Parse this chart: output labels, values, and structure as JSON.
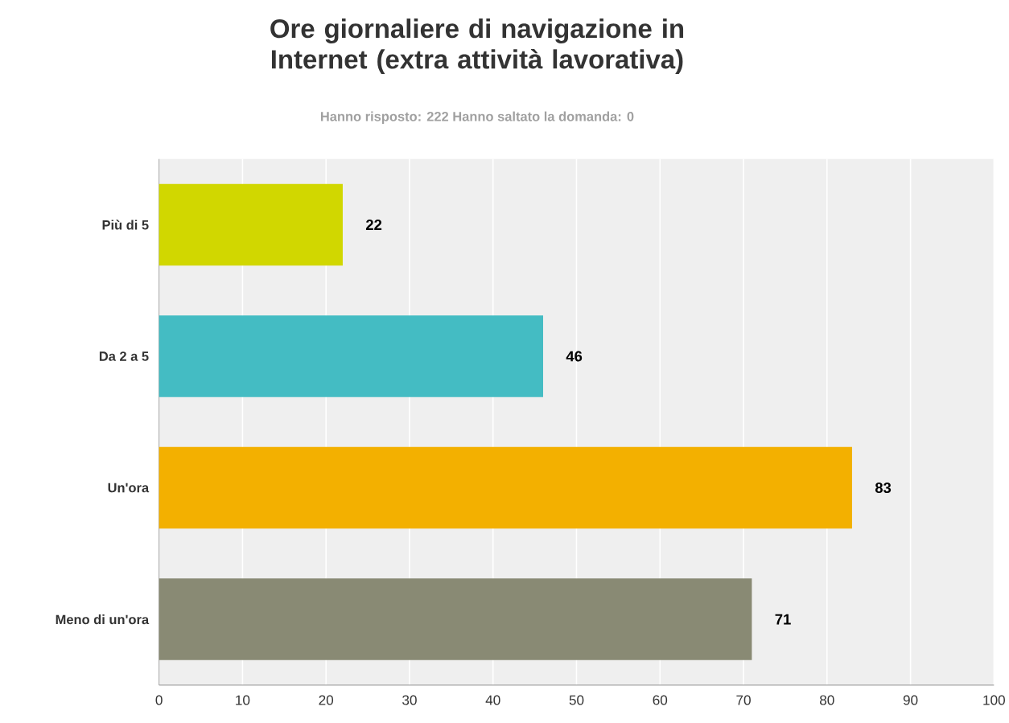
{
  "chart_data": {
    "type": "bar",
    "orientation": "horizontal",
    "title": "Ore giornaliere di navigazione in Internet (extra attività lavorativa)",
    "subtitle": "Hanno risposto: 222 Hanno saltato la domanda: 0",
    "categories": [
      "Più di 5",
      "Da 2 a 5",
      "Un'ora",
      "Meno di un'ora"
    ],
    "values": [
      22,
      46,
      83,
      71
    ],
    "colors": [
      "#d1d700",
      "#44bcc3",
      "#f3b000",
      "#898a74"
    ],
    "xlim": [
      0,
      100
    ],
    "xticks": [
      0,
      10,
      20,
      30,
      40,
      50,
      60,
      70,
      80,
      90,
      100
    ],
    "grid": "x",
    "data_labels": true
  }
}
